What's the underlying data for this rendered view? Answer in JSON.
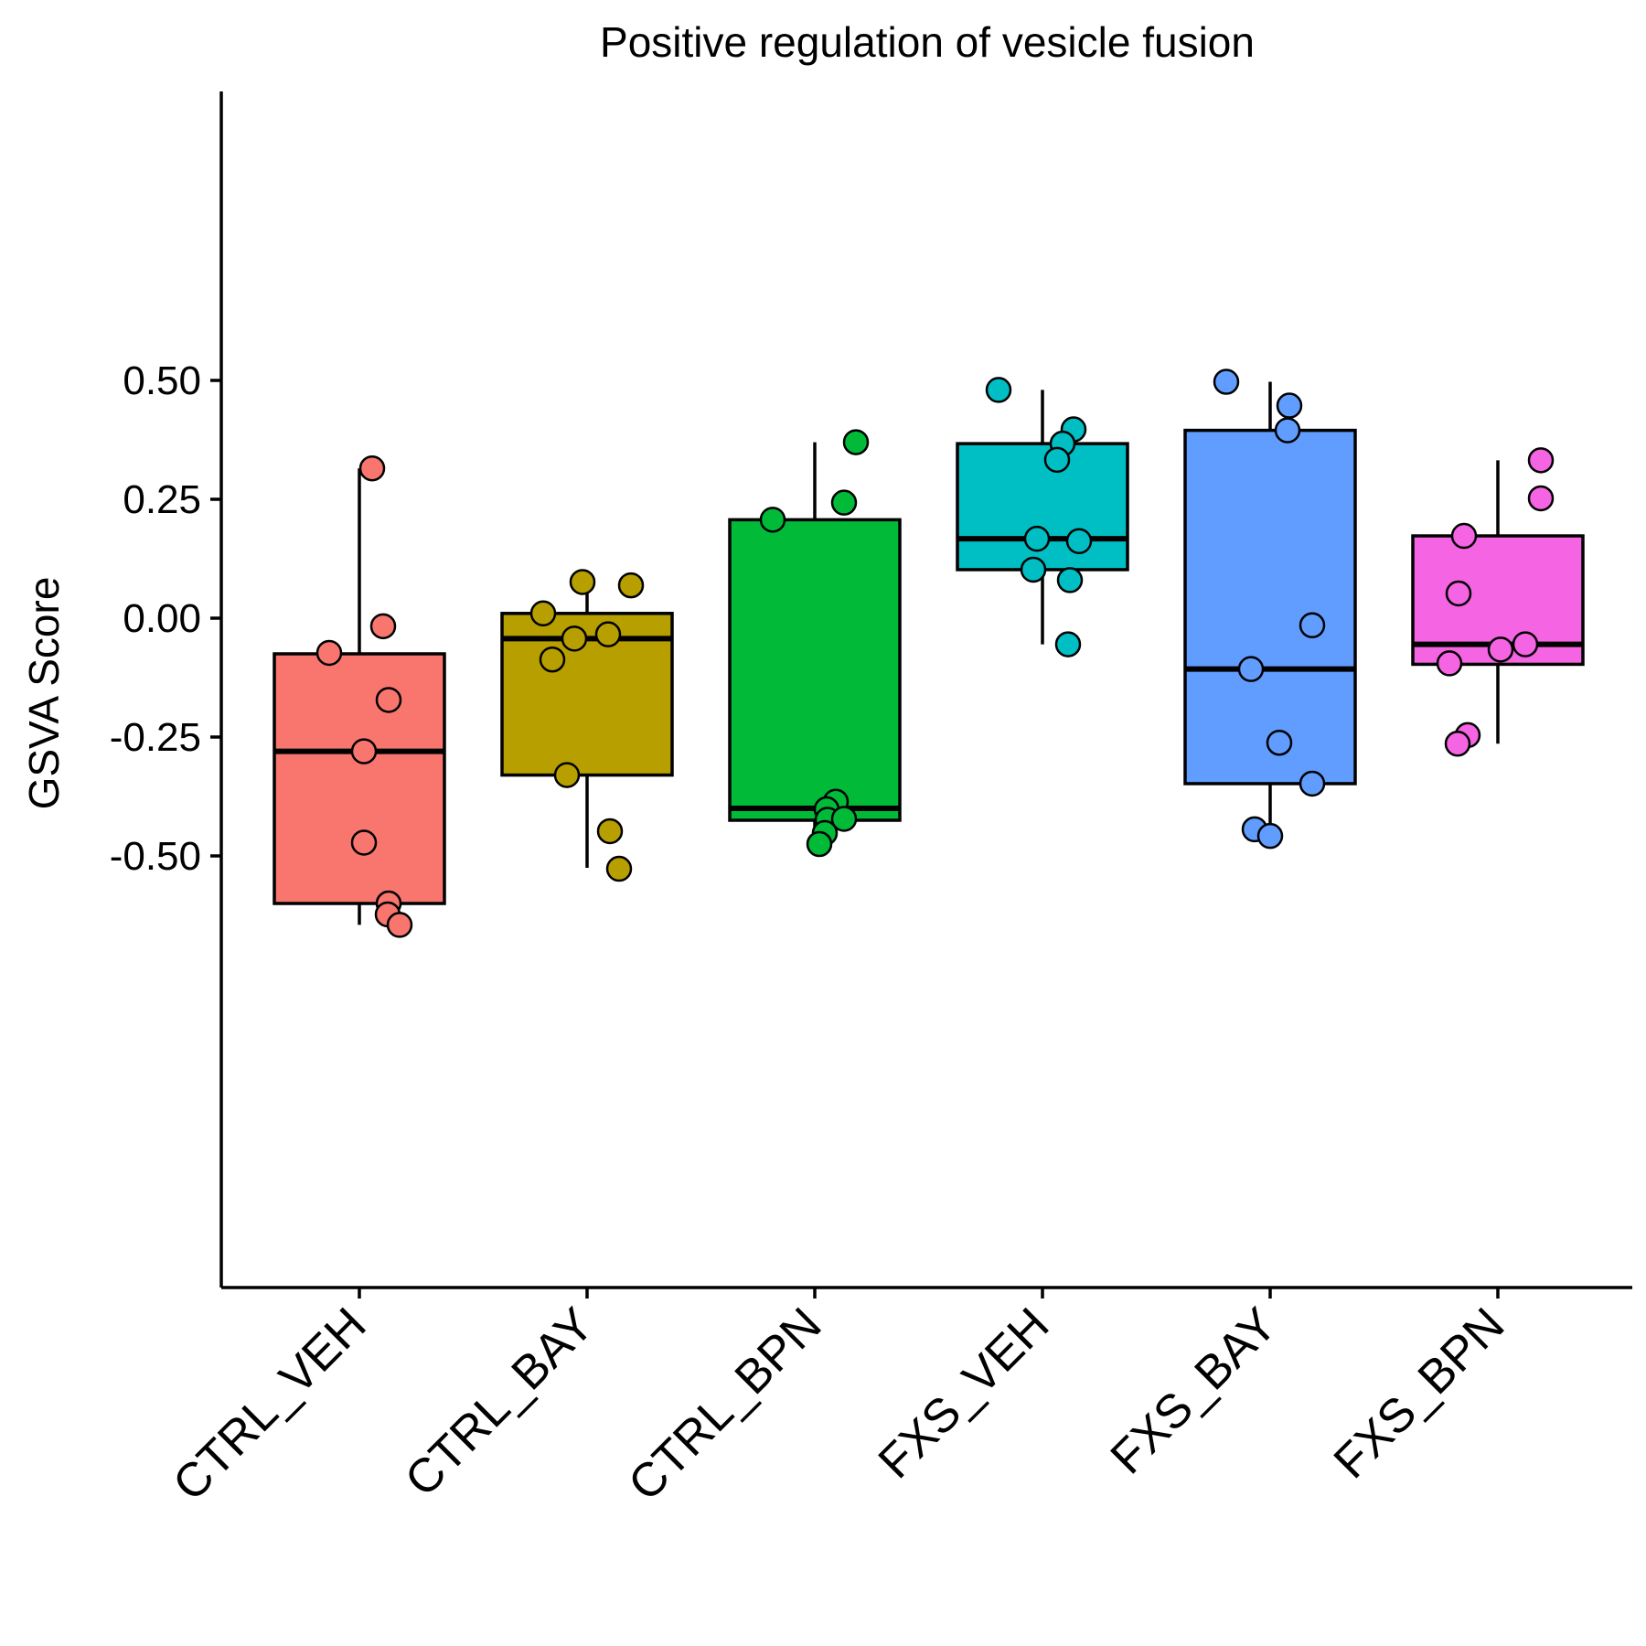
{
  "chart_data": {
    "type": "box",
    "title": "Positive regulation of vesicle fusion",
    "xlabel": "",
    "ylabel": "GSVA Score",
    "ylim": [
      -0.7,
      0.55
    ],
    "yticks": [
      0.5,
      0.25,
      0.0,
      -0.25,
      -0.5
    ],
    "ytick_labels": [
      "0.50",
      "0.25",
      "0.00",
      "-0.25",
      "-0.50"
    ],
    "grid": false,
    "legend": "none",
    "categories": [
      "CTRL_VEH",
      "CTRL_BAY",
      "CTRL_BPN",
      "FXS_VEH",
      "FXS_BAY",
      "FXS_BPN"
    ],
    "colors": [
      "#F8766D",
      "#B79F00",
      "#00BA38",
      "#00BFC4",
      "#619CFF",
      "#F564E3"
    ],
    "boxes": [
      {
        "q1": -0.6,
        "median": -0.28,
        "q3": -0.075,
        "whisker_low": -0.645,
        "whisker_high": 0.315
      },
      {
        "q1": -0.33,
        "median": -0.043,
        "q3": 0.01,
        "whisker_low": -0.525,
        "whisker_high": 0.075
      },
      {
        "q1": -0.425,
        "median": -0.4,
        "q3": 0.207,
        "whisker_low": -0.475,
        "whisker_high": 0.37
      },
      {
        "q1": 0.102,
        "median": 0.167,
        "q3": 0.367,
        "whisker_low": -0.055,
        "whisker_high": 0.48
      },
      {
        "q1": -0.348,
        "median": -0.107,
        "q3": 0.395,
        "whisker_low": -0.458,
        "whisker_high": 0.497
      },
      {
        "q1": -0.097,
        "median": -0.055,
        "q3": 0.173,
        "whisker_low": -0.264,
        "whisker_high": 0.332
      }
    ],
    "points": [
      [
        0.315,
        -0.017,
        -0.073,
        -0.172,
        -0.28,
        -0.472,
        -0.6,
        -0.623,
        -0.645
      ],
      [
        0.076,
        0.069,
        0.01,
        -0.043,
        -0.034,
        -0.087,
        -0.33,
        -0.448,
        -0.527
      ],
      [
        0.37,
        0.243,
        0.207,
        -0.386,
        -0.402,
        -0.424,
        -0.422,
        -0.452,
        -0.475
      ],
      [
        0.48,
        0.397,
        0.367,
        0.333,
        0.167,
        0.162,
        0.102,
        0.08,
        -0.055
      ],
      [
        0.497,
        0.447,
        0.395,
        -0.015,
        -0.107,
        -0.262,
        -0.348,
        -0.444,
        -0.458
      ],
      [
        0.332,
        0.252,
        0.173,
        0.052,
        -0.055,
        -0.066,
        -0.095,
        -0.246,
        -0.264
      ]
    ]
  }
}
